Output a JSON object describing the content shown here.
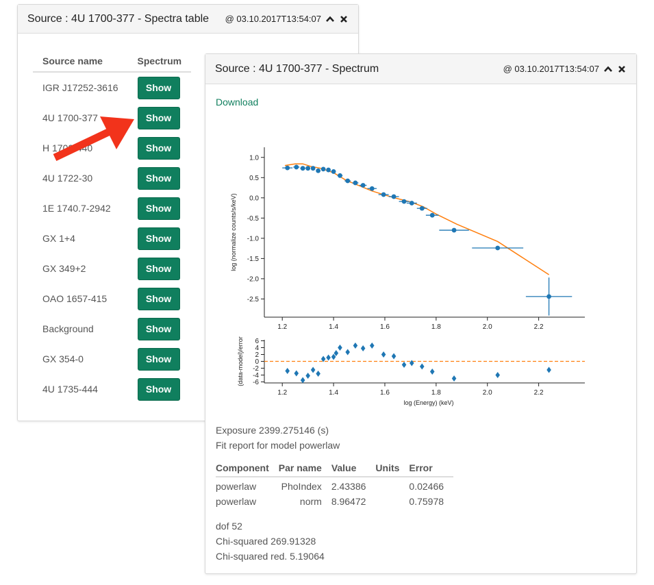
{
  "table_panel": {
    "title": "Source : 4U 1700-377 - Spectra table",
    "timestamp": "@ 03.10.2017T13:54:07",
    "columns": [
      "Source name",
      "Spectrum"
    ],
    "button_label": "Show",
    "rows": [
      "IGR J17252-3616",
      "4U 1700-377",
      "H 1700-440",
      "4U 1722-30",
      "1E 1740.7-2942",
      "GX 1+4",
      "GX 349+2",
      "OAO 1657-415",
      "Background",
      "GX 354-0",
      "4U 1735-444"
    ]
  },
  "spectrum_panel": {
    "title": "Source : 4U 1700-377 - Spectrum",
    "timestamp": "@ 03.10.2017T13:54:07",
    "download_label": "Download",
    "exposure": "Exposure 2399.275146 (s)",
    "fit_report": "Fit report for model powerlaw",
    "fit_table": {
      "headers": [
        "Component",
        "Par name",
        "Value",
        "Units",
        "Error"
      ],
      "rows": [
        [
          "powerlaw",
          "PhoIndex",
          "2.43386",
          "",
          "0.02466"
        ],
        [
          "powerlaw",
          "norm",
          "8.96472",
          "",
          "0.75978"
        ]
      ]
    },
    "dof": "dof 52",
    "chi_squared": "Chi-squared 269.91328",
    "chi_squared_red": "Chi-squared red. 5.19064"
  },
  "colors": {
    "accent_green": "#107f5e",
    "data_blue": "#1f77b4",
    "model_orange": "#ff7f0e",
    "arrow_red": "#f2331b"
  },
  "icons": [
    "chevron-up-icon",
    "close-icon",
    "arrow-pointer-icon"
  ],
  "chart_data": [
    {
      "type": "scatter",
      "title": "",
      "xlabel": "",
      "ylabel": "log (normalize counts/s/keV)",
      "xlim": [
        1.13,
        2.38
      ],
      "ylim": [
        -2.95,
        1.25
      ],
      "xticks": [
        "1.2",
        "1.4",
        "1.6",
        "1.8",
        "2.0",
        "2.2"
      ],
      "yticks": [
        "1.0",
        "0.5",
        "0.0",
        "-0.5",
        "-1.0",
        "-1.5",
        "-2.0",
        "-2.5"
      ],
      "series": [
        {
          "points": [
            {
              "x": 1.22,
              "y": 0.74,
              "xerr": 0.02,
              "yerr": 0
            },
            {
              "x": 1.255,
              "y": 0.76,
              "xerr": 0.012,
              "yerr": 0
            },
            {
              "x": 1.28,
              "y": 0.73,
              "xerr": 0.01,
              "yerr": 0
            },
            {
              "x": 1.3,
              "y": 0.73,
              "xerr": 0.008,
              "yerr": 0
            },
            {
              "x": 1.32,
              "y": 0.73,
              "xerr": 0.008,
              "yerr": 0
            },
            {
              "x": 1.34,
              "y": 0.67,
              "xerr": 0.008,
              "yerr": 0
            },
            {
              "x": 1.36,
              "y": 0.71,
              "xerr": 0.008,
              "yerr": 0
            },
            {
              "x": 1.38,
              "y": 0.69,
              "xerr": 0.008,
              "yerr": 0
            },
            {
              "x": 1.4,
              "y": 0.65,
              "xerr": 0.008,
              "yerr": 0
            },
            {
              "x": 1.425,
              "y": 0.55,
              "xerr": 0.01,
              "yerr": 0
            },
            {
              "x": 1.455,
              "y": 0.42,
              "xerr": 0.012,
              "yerr": 0
            },
            {
              "x": 1.485,
              "y": 0.37,
              "xerr": 0.012,
              "yerr": 0
            },
            {
              "x": 1.515,
              "y": 0.31,
              "xerr": 0.014,
              "yerr": 0
            },
            {
              "x": 1.55,
              "y": 0.23,
              "xerr": 0.018,
              "yerr": 0
            },
            {
              "x": 1.595,
              "y": 0.08,
              "xerr": 0.02,
              "yerr": 0
            },
            {
              "x": 1.635,
              "y": 0.03,
              "xerr": 0.02,
              "yerr": 0
            },
            {
              "x": 1.675,
              "y": -0.09,
              "xerr": 0.02,
              "yerr": 0
            },
            {
              "x": 1.705,
              "y": -0.13,
              "xerr": 0.02,
              "yerr": 0
            },
            {
              "x": 1.745,
              "y": -0.26,
              "xerr": 0.02,
              "yerr": 0
            },
            {
              "x": 1.785,
              "y": -0.43,
              "xerr": 0.025,
              "yerr": 0
            },
            {
              "x": 1.87,
              "y": -0.8,
              "xerr": 0.058,
              "yerr": 0
            },
            {
              "x": 2.04,
              "y": -1.24,
              "xerr": 0.1,
              "yerr": 0
            },
            {
              "x": 2.24,
              "y": -2.44,
              "xerr": 0.09,
              "yerr": 0.47
            }
          ]
        },
        {
          "type": "line",
          "points": [
            {
              "x": 1.21,
              "y": 0.8
            },
            {
              "x": 1.25,
              "y": 0.84
            },
            {
              "x": 1.28,
              "y": 0.84
            },
            {
              "x": 1.31,
              "y": 0.78
            },
            {
              "x": 1.35,
              "y": 0.73
            },
            {
              "x": 1.4,
              "y": 0.62
            },
            {
              "x": 1.45,
              "y": 0.43
            },
            {
              "x": 1.5,
              "y": 0.3
            },
            {
              "x": 1.55,
              "y": 0.17
            },
            {
              "x": 1.6,
              "y": 0.07
            },
            {
              "x": 1.65,
              "y": -0.02
            },
            {
              "x": 1.7,
              "y": -0.1
            },
            {
              "x": 1.75,
              "y": -0.22
            },
            {
              "x": 1.8,
              "y": -0.4
            },
            {
              "x": 1.88,
              "y": -0.65
            },
            {
              "x": 2.04,
              "y": -1.08
            },
            {
              "x": 2.24,
              "y": -1.9
            }
          ]
        }
      ]
    },
    {
      "type": "scatter",
      "title": "",
      "xlabel": "log (Energy) (keV)",
      "ylabel": "(data-model)/error",
      "xlim": [
        1.13,
        2.38
      ],
      "ylim": [
        -6.3,
        6.3
      ],
      "xticks": [
        "1.2",
        "1.4",
        "1.6",
        "1.8",
        "2.0",
        "2.2"
      ],
      "yticks": [
        "6",
        "4",
        "2",
        "0",
        "-2",
        "-4",
        "-6"
      ],
      "reference_line": 0,
      "points": [
        {
          "x": 1.22,
          "y": -2.8
        },
        {
          "x": 1.255,
          "y": -3.5
        },
        {
          "x": 1.28,
          "y": -5.5
        },
        {
          "x": 1.3,
          "y": -4.2
        },
        {
          "x": 1.32,
          "y": -2.5
        },
        {
          "x": 1.34,
          "y": -3.6
        },
        {
          "x": 1.36,
          "y": 0.7
        },
        {
          "x": 1.38,
          "y": 1.1
        },
        {
          "x": 1.4,
          "y": 1.3
        },
        {
          "x": 1.41,
          "y": 2.4
        },
        {
          "x": 1.425,
          "y": 4.0
        },
        {
          "x": 1.455,
          "y": 2.7
        },
        {
          "x": 1.485,
          "y": 4.6
        },
        {
          "x": 1.515,
          "y": 3.8
        },
        {
          "x": 1.55,
          "y": 4.6
        },
        {
          "x": 1.595,
          "y": 2.0
        },
        {
          "x": 1.635,
          "y": 1.5
        },
        {
          "x": 1.675,
          "y": -1.0
        },
        {
          "x": 1.705,
          "y": -0.5
        },
        {
          "x": 1.745,
          "y": -1.5
        },
        {
          "x": 1.785,
          "y": -3.0
        },
        {
          "x": 1.87,
          "y": -5.0
        },
        {
          "x": 2.04,
          "y": -4.0
        },
        {
          "x": 2.24,
          "y": -2.5
        }
      ]
    }
  ]
}
